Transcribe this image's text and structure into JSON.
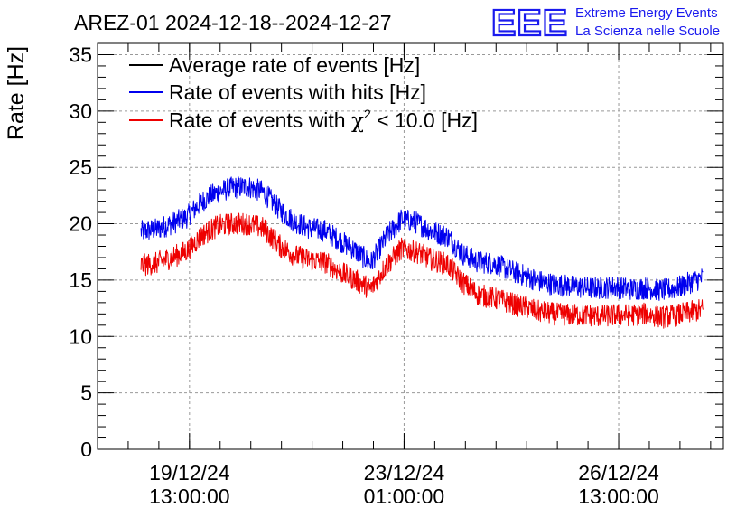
{
  "header": {
    "title": "AREZ-01 2024-12-18--2024-12-27",
    "logo_text": "EEE",
    "logo_line1": "Extreme Energy Events",
    "logo_line2": "La Scienza nelle Scuole"
  },
  "colors": {
    "average": "#000000",
    "hits": "#0000ee",
    "chi2": "#ee0000",
    "logo": "#1a1aee"
  },
  "chart_data": {
    "type": "line",
    "ylabel": "Rate [Hz]",
    "ylim": [
      0,
      36
    ],
    "yticks": [
      0,
      5,
      10,
      15,
      20,
      25,
      30,
      35
    ],
    "xlim": [
      "2024-12-18 01:00",
      "2024-12-28 06:00"
    ],
    "grid": true,
    "legend_position": "top-left",
    "xticks": [
      {
        "at": "2024-12-19 13:00",
        "label1": "19/12/24",
        "label2": "13:00:00"
      },
      {
        "at": "2024-12-23 01:00",
        "label1": "23/12/24",
        "label2": "01:00:00"
      },
      {
        "at": "2024-12-26 13:00",
        "label1": "26/12/24",
        "label2": "13:00:00"
      }
    ],
    "legend": {
      "average": "Average rate of events [Hz]",
      "hits": "Rate of events with hits [Hz]",
      "chi2_pre": "Rate of events with ",
      "chi2_sym": "χ",
      "chi2_sup": "2",
      "chi2_post": " < 10.0 [Hz]"
    },
    "noise_amplitude": 1.0,
    "series": [
      {
        "name": "Rate of events with hits [Hz]",
        "key": "hits",
        "x": [
          "2024-12-18 18:00",
          "2024-12-19 00:00",
          "2024-12-19 06:00",
          "2024-12-19 12:00",
          "2024-12-19 18:00",
          "2024-12-20 00:00",
          "2024-12-20 06:00",
          "2024-12-20 12:00",
          "2024-12-20 18:00",
          "2024-12-21 00:00",
          "2024-12-21 06:00",
          "2024-12-21 12:00",
          "2024-12-21 18:00",
          "2024-12-22 00:00",
          "2024-12-22 06:00",
          "2024-12-22 12:00",
          "2024-12-22 18:00",
          "2024-12-23 00:00",
          "2024-12-23 06:00",
          "2024-12-23 12:00",
          "2024-12-23 18:00",
          "2024-12-24 00:00",
          "2024-12-24 06:00",
          "2024-12-24 12:00",
          "2024-12-24 18:00",
          "2024-12-25 00:00",
          "2024-12-25 06:00",
          "2024-12-25 12:00",
          "2024-12-25 18:00",
          "2024-12-26 00:00",
          "2024-12-26 06:00",
          "2024-12-26 12:00",
          "2024-12-26 18:00",
          "2024-12-27 00:00",
          "2024-12-27 06:00",
          "2024-12-27 12:00",
          "2024-12-27 18:00",
          "2024-12-27 22:00"
        ],
        "values": [
          19.3,
          19.5,
          20.0,
          20.6,
          22.0,
          22.8,
          23.2,
          23.3,
          22.8,
          21.3,
          20.2,
          19.6,
          19.4,
          18.5,
          17.6,
          16.5,
          18.8,
          20.4,
          20.1,
          19.3,
          18.9,
          17.3,
          16.6,
          16.5,
          15.9,
          15.4,
          14.9,
          14.6,
          14.5,
          14.3,
          14.3,
          14.4,
          14.2,
          14.3,
          14.1,
          14.3,
          14.9,
          15.2
        ]
      },
      {
        "name": "Rate of events with χ2 < 10.0 [Hz]",
        "key": "chi2",
        "x": [
          "2024-12-18 18:00",
          "2024-12-19 00:00",
          "2024-12-19 06:00",
          "2024-12-19 12:00",
          "2024-12-19 18:00",
          "2024-12-20 00:00",
          "2024-12-20 06:00",
          "2024-12-20 12:00",
          "2024-12-20 18:00",
          "2024-12-21 00:00",
          "2024-12-21 06:00",
          "2024-12-21 12:00",
          "2024-12-21 18:00",
          "2024-12-22 00:00",
          "2024-12-22 06:00",
          "2024-12-22 12:00",
          "2024-12-22 18:00",
          "2024-12-23 00:00",
          "2024-12-23 06:00",
          "2024-12-23 12:00",
          "2024-12-23 18:00",
          "2024-12-24 00:00",
          "2024-12-24 06:00",
          "2024-12-24 12:00",
          "2024-12-24 18:00",
          "2024-12-25 00:00",
          "2024-12-25 06:00",
          "2024-12-25 12:00",
          "2024-12-25 18:00",
          "2024-12-26 00:00",
          "2024-12-26 06:00",
          "2024-12-26 12:00",
          "2024-12-26 18:00",
          "2024-12-27 00:00",
          "2024-12-27 06:00",
          "2024-12-27 12:00",
          "2024-12-27 18:00",
          "2024-12-27 22:00"
        ],
        "values": [
          16.3,
          16.5,
          17.0,
          17.6,
          19.0,
          19.8,
          20.0,
          20.0,
          19.6,
          18.1,
          17.2,
          16.8,
          16.6,
          15.7,
          15.0,
          14.2,
          16.3,
          17.8,
          17.5,
          16.8,
          16.4,
          14.8,
          13.7,
          13.4,
          13.0,
          12.6,
          12.2,
          12.0,
          11.9,
          11.9,
          11.8,
          11.9,
          11.9,
          12.0,
          11.7,
          11.9,
          12.2,
          12.4
        ]
      }
    ]
  }
}
